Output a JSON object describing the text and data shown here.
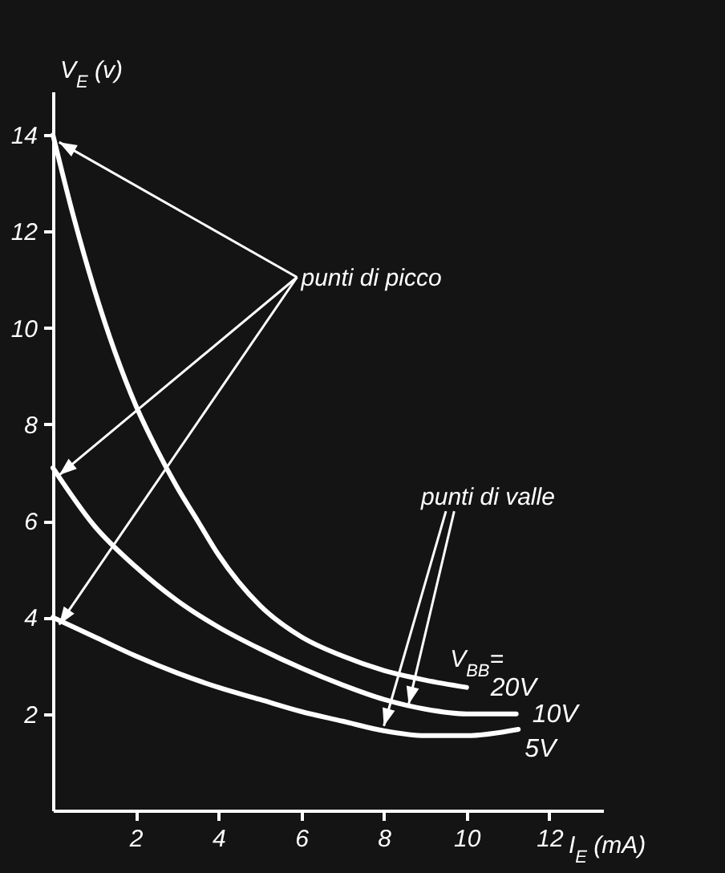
{
  "chart_data": {
    "type": "line",
    "xlabel": "I$_{E}$ (mA)",
    "ylabel": "V$_{E}$ (v)",
    "xlim": [
      0,
      13.3
    ],
    "ylim": [
      0,
      14.9
    ],
    "xticks": [
      2,
      4,
      6,
      8,
      10,
      12
    ],
    "yticks": [
      2,
      4,
      6,
      8,
      10,
      12,
      14
    ],
    "grid": false,
    "legend": false,
    "marker": "none",
    "line_style": "solid",
    "annotations": [
      "punti di picco",
      {
        "text": "punti di valle",
        "x": 8.6,
        "y": 2.2
      },
      "V$_{BB}$="
    ],
    "series": [
      {
        "name": "20V",
        "color": "#ffffff",
        "x": [
          0,
          0.5,
          1,
          1.5,
          2,
          2.5,
          3,
          3.5,
          4,
          5,
          6,
          7,
          8,
          9,
          10
        ],
        "values": [
          14,
          12.3,
          10.8,
          9.5,
          8.4,
          7.5,
          6.7,
          6.0,
          5.3,
          4.25,
          3.6,
          3.2,
          2.9,
          2.7,
          2.55
        ]
      },
      {
        "name": "10V",
        "color": "#ffffff",
        "x": [
          0,
          1,
          2,
          3,
          4,
          5,
          6,
          7,
          8,
          9,
          10,
          11.2
        ],
        "values": [
          7.1,
          5.9,
          5.05,
          4.35,
          3.8,
          3.35,
          2.95,
          2.6,
          2.3,
          2.1,
          2.0,
          2.0
        ]
      },
      {
        "name": "5V",
        "color": "#ffffff",
        "x": [
          0,
          1,
          2,
          3,
          4,
          5,
          6,
          7,
          8,
          9,
          10,
          11.25
        ],
        "values": [
          4.0,
          3.6,
          3.2,
          2.85,
          2.55,
          2.3,
          2.05,
          1.85,
          1.65,
          1.55,
          1.55,
          1.68
        ]
      }
    ]
  }
}
